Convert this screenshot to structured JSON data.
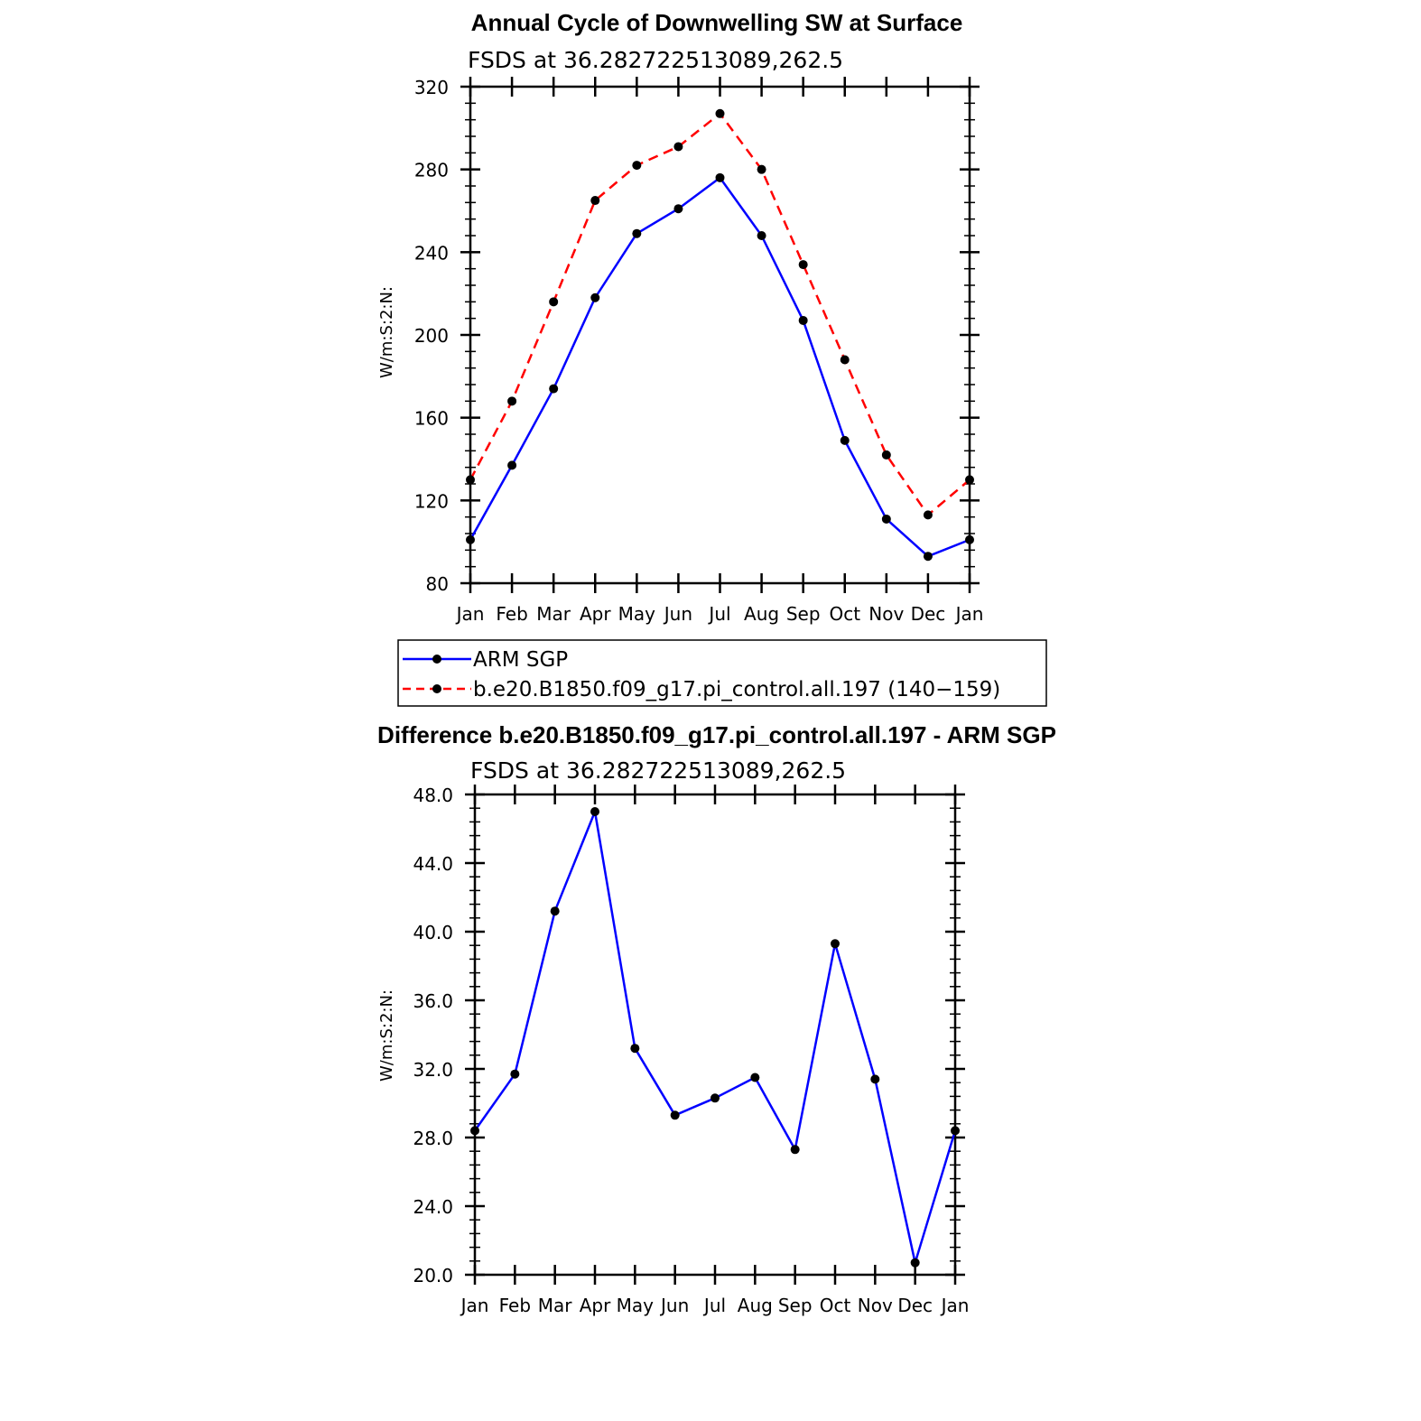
{
  "chart_data": [
    {
      "type": "line",
      "title": "Annual Cycle of Downwelling SW at Surface",
      "subtitle": "FSDS at 36.282722513089,262.5",
      "ylabel": "W/m:S:2:N:",
      "xlabel": "",
      "categories": [
        "Jan",
        "Feb",
        "Mar",
        "Apr",
        "May",
        "Jun",
        "Jul",
        "Aug",
        "Sep",
        "Oct",
        "Nov",
        "Dec",
        "Jan"
      ],
      "ylim": [
        80,
        320
      ],
      "yticks": [
        "80",
        "120",
        "160",
        "200",
        "240",
        "280",
        "320"
      ],
      "series": [
        {
          "name": "ARM SGP",
          "color": "#0000ff",
          "dash": "solid",
          "values": [
            101,
            137,
            174,
            218,
            249,
            261,
            276,
            248,
            207,
            149,
            111,
            93,
            101
          ]
        },
        {
          "name": "b.e20.B1850.f09_g17.pi_control.all.197 (140−159)",
          "color": "#ff0000",
          "dash": "dashed",
          "values": [
            130,
            168,
            216,
            265,
            282,
            291,
            307,
            280,
            234,
            188,
            142,
            113,
            130
          ]
        }
      ],
      "legend": "below"
    },
    {
      "type": "line",
      "title": "Difference b.e20.B1850.f09_g17.pi_control.all.197 - ARM SGP",
      "subtitle": "FSDS at 36.282722513089,262.5",
      "ylabel": "W/m:S:2:N:",
      "xlabel": "",
      "categories": [
        "Jan",
        "Feb",
        "Mar",
        "Apr",
        "May",
        "Jun",
        "Jul",
        "Aug",
        "Sep",
        "Oct",
        "Nov",
        "Dec",
        "Jan"
      ],
      "ylim": [
        20,
        48
      ],
      "yticks": [
        "20.0",
        "24.0",
        "28.0",
        "32.0",
        "36.0",
        "40.0",
        "44.0",
        "48.0"
      ],
      "series": [
        {
          "color": "#0000ff",
          "dash": "solid",
          "values": [
            28.4,
            31.7,
            41.2,
            47.0,
            33.2,
            29.3,
            30.3,
            31.5,
            27.3,
            39.3,
            31.4,
            20.7,
            28.4
          ]
        }
      ]
    }
  ]
}
